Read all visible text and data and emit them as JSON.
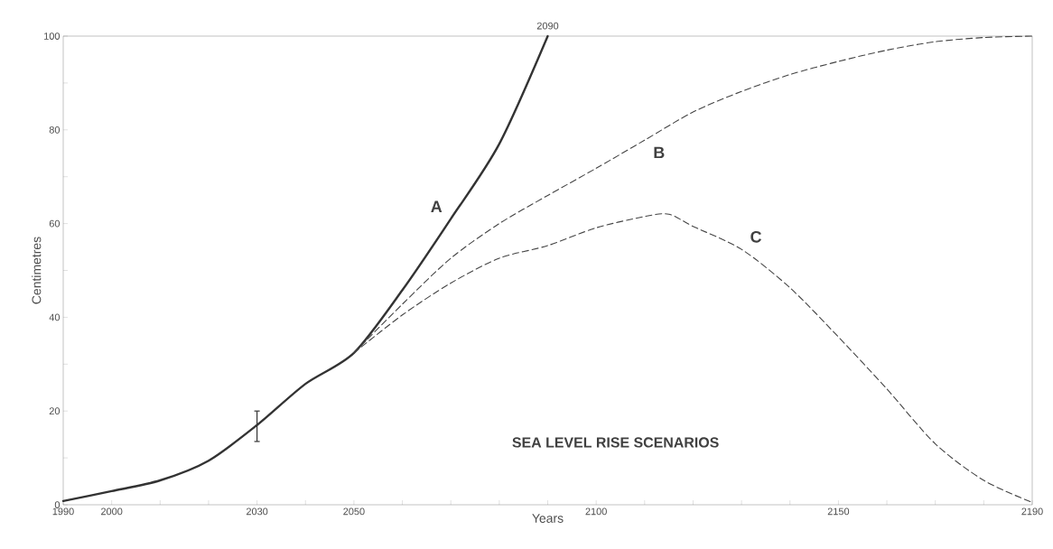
{
  "chart_data": {
    "type": "line",
    "title": "SEA LEVEL RISE SCENARIOS",
    "xlabel": "Years",
    "ylabel": "Centimetres",
    "xlim": [
      1990,
      2190
    ],
    "ylim": [
      0,
      100
    ],
    "xticks": [
      1990,
      2000,
      {
        "value": 2010,
        "label": null
      },
      {
        "value": 2020,
        "label": null
      },
      2030,
      {
        "value": 2040,
        "label": null
      },
      2050,
      {
        "value": 2060,
        "label": null
      },
      {
        "value": 2070,
        "label": null
      },
      {
        "value": 2080,
        "label": null
      },
      {
        "value": 2090,
        "label": null
      },
      2100,
      {
        "value": 2110,
        "label": null
      },
      {
        "value": 2120,
        "label": null
      },
      {
        "value": 2130,
        "label": null
      },
      {
        "value": 2140,
        "label": null
      },
      2150,
      {
        "value": 2160,
        "label": null
      },
      {
        "value": 2170,
        "label": null
      },
      {
        "value": 2180,
        "label": null
      },
      2190
    ],
    "yticks": [
      0,
      {
        "value": 10,
        "label": null
      },
      20,
      {
        "value": 30,
        "label": null
      },
      40,
      {
        "value": 50,
        "label": null
      },
      60,
      {
        "value": 70,
        "label": null
      },
      80,
      {
        "value": 90,
        "label": null
      },
      100
    ],
    "grid": false,
    "legend": false,
    "marker": "none",
    "series": [
      {
        "name": "A",
        "color": "#333333",
        "line_style": "solid",
        "x": [
          1990,
          2000,
          2010,
          2020,
          2030,
          2040,
          2050,
          2060,
          2070,
          2080,
          2090
        ],
        "values": [
          0.8,
          2.9,
          5.2,
          9.4,
          17,
          25.8,
          32.4,
          45.8,
          61,
          77,
          100
        ],
        "errors": [
          null,
          null,
          null,
          null,
          [
            13.5,
            20
          ],
          null,
          null,
          null,
          null,
          null,
          null
        ]
      },
      {
        "name": "B",
        "color": "#444444",
        "line_style": "dashed",
        "x": [
          2050,
          2060,
          2070,
          2080,
          2090,
          2100,
          2110,
          2120,
          2130,
          2140,
          2150,
          2160,
          2170,
          2180,
          2190
        ],
        "values": [
          32.4,
          42.8,
          52.6,
          60,
          66,
          71.8,
          77.8,
          83.8,
          88.2,
          91.8,
          94.6,
          97,
          98.8,
          99.7,
          100
        ]
      },
      {
        "name": "C",
        "color": "#444444",
        "line_style": "dashed",
        "x": [
          2050,
          2060,
          2070,
          2080,
          2090,
          2100,
          2110,
          2115,
          2120,
          2130,
          2140,
          2150,
          2160,
          2170,
          2180,
          2190
        ],
        "values": [
          32.4,
          40.5,
          47.3,
          52.6,
          55.3,
          59.1,
          61.5,
          62,
          59.4,
          54.5,
          46.3,
          35.8,
          24.7,
          13,
          5.2,
          0.5
        ]
      }
    ],
    "annotations": [
      {
        "text": "2090",
        "x": 2090,
        "y": 100
      }
    ]
  }
}
